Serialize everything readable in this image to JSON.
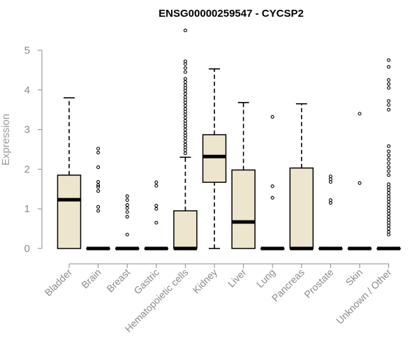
{
  "chart_data": {
    "type": "box",
    "title": "ENSG00000259547 - CYCSP2",
    "xlabel": "",
    "ylabel": "Expression",
    "ylim": [
      0,
      5.5
    ],
    "yticks": [
      0,
      1,
      2,
      3,
      4,
      5
    ],
    "grid": false,
    "categories": [
      "Bladder",
      "Brain",
      "Breast",
      "Gastric",
      "Hematopoietic cells",
      "Kidney",
      "Liver",
      "Lung",
      "Pancreas",
      "Prostate",
      "Skin",
      "Unknown / Other"
    ],
    "boxes": [
      {
        "min": 0,
        "q1": 0,
        "median": 1.23,
        "q3": 1.85,
        "max": 3.8,
        "outliers": []
      },
      {
        "min": 0,
        "q1": 0,
        "median": 0,
        "q3": 0,
        "max": 0,
        "outliers": [
          0.95,
          1.05,
          1.45,
          1.55,
          1.6,
          1.68,
          2.05,
          2.42,
          2.52
        ]
      },
      {
        "min": 0,
        "q1": 0,
        "median": 0,
        "q3": 0,
        "max": 0,
        "outliers": [
          0.35,
          0.8,
          0.92,
          1.02,
          1.1,
          1.22,
          1.32
        ]
      },
      {
        "min": 0,
        "q1": 0,
        "median": 0,
        "q3": 0,
        "max": 0,
        "outliers": [
          0.65,
          1.0,
          1.08,
          1.58,
          1.67
        ]
      },
      {
        "min": 0,
        "q1": 0,
        "median": 0,
        "q3": 0.95,
        "max": 2.3,
        "outliers": [
          2.4,
          2.48,
          2.55,
          2.62,
          2.7,
          2.78,
          2.85,
          2.92,
          3.0,
          3.08,
          3.15,
          3.22,
          3.3,
          3.38,
          3.45,
          3.52,
          3.6,
          3.68,
          3.75,
          3.82,
          3.9,
          3.98,
          4.05,
          4.12,
          4.2,
          4.28,
          4.45,
          4.55,
          4.65,
          4.72,
          5.5
        ]
      },
      {
        "min": 0,
        "q1": 1.67,
        "median": 2.32,
        "q3": 2.87,
        "max": 4.53,
        "outliers": []
      },
      {
        "min": 0,
        "q1": 0,
        "median": 0.67,
        "q3": 1.98,
        "max": 3.68,
        "outliers": []
      },
      {
        "min": 0,
        "q1": 0,
        "median": 0,
        "q3": 0,
        "max": 0,
        "outliers": [
          1.28,
          1.57,
          3.32
        ]
      },
      {
        "min": 0,
        "q1": 0,
        "median": 0,
        "q3": 2.03,
        "max": 3.65,
        "outliers": []
      },
      {
        "min": 0,
        "q1": 0,
        "median": 0,
        "q3": 0,
        "max": 0,
        "outliers": [
          1.15,
          1.22,
          1.68,
          1.75,
          1.82
        ]
      },
      {
        "min": 0,
        "q1": 0,
        "median": 0,
        "q3": 0,
        "max": 0,
        "outliers": [
          1.65,
          3.4
        ]
      },
      {
        "min": 0,
        "q1": 0,
        "median": 0,
        "q3": 0,
        "max": 0,
        "outliers": [
          0.35,
          0.42,
          0.5,
          0.58,
          0.65,
          0.72,
          0.8,
          0.88,
          0.95,
          1.02,
          1.1,
          1.18,
          1.25,
          1.32,
          1.4,
          1.48,
          1.55,
          1.62,
          1.85,
          1.95,
          2.05,
          2.15,
          2.25,
          2.35,
          2.45,
          2.58,
          3.5,
          3.62,
          3.72,
          4.05,
          4.15,
          4.25,
          4.58,
          4.75
        ]
      }
    ]
  }
}
